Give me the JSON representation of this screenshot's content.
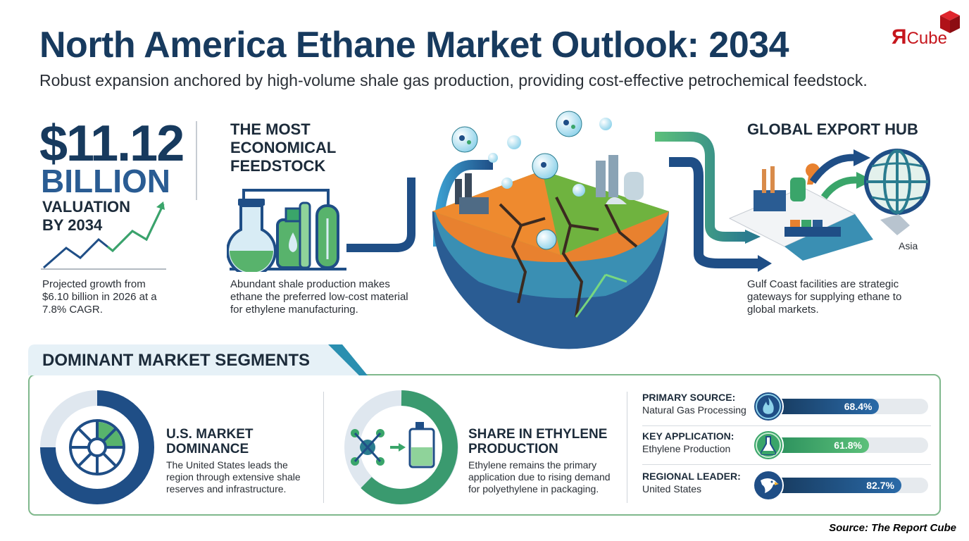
{
  "header": {
    "title": "North America Ethane Market Outlook: 2034",
    "subtitle": "Robust expansion anchored by high-volume shale gas production, providing cost-effective petrochemical feedstock."
  },
  "logo": {
    "r": "Я",
    "text": "Cube",
    "color": "#c6161d"
  },
  "valuation": {
    "amount": "$11.12",
    "unit": "BILLION",
    "label": "VALUATION BY 2034",
    "description": "Projected growth from $6.10 billion in 2026 at a 7.8% CAGR."
  },
  "feedstock": {
    "title": "THE MOST ECONOMICAL FEEDSTOCK",
    "description": "Abundant shale production makes ethane the preferred low-cost material for ethylene manufacturing."
  },
  "export": {
    "title": "GLOBAL EXPORT HUB",
    "region": "Asia",
    "description": "Gulf Coast facilities are strategic gateways for supplying ethane to global markets."
  },
  "segments": {
    "title": "DOMINANT MARKET SEGMENTS",
    "us_dominance": {
      "title": "U.S. MARKET DOMINANCE",
      "description": "The United States leads the region through extensive shale reserves and infrastructure."
    },
    "ethylene_share": {
      "title": "SHARE IN ETHYLENE PRODUCTION",
      "description": "Ethylene remains the primary application due to rising demand for polyethylene in packaging."
    },
    "metrics": [
      {
        "label": "PRIMARY SOURCE:",
        "sub": "Natural Gas Processing",
        "value": "68.4%",
        "fraction": 0.684,
        "icon": "flame-icon",
        "color": "#1f4e86"
      },
      {
        "label": "KEY APPLICATION:",
        "sub": "Ethylene Production",
        "value": "61.8%",
        "fraction": 0.618,
        "icon": "flask-icon",
        "color": "#3aa56a"
      },
      {
        "label": "REGIONAL LEADER:",
        "sub": "United States",
        "value": "82.7%",
        "fraction": 0.827,
        "icon": "eagle-icon",
        "color": "#1f4e86"
      }
    ]
  },
  "source": "Source: The Report Cube"
}
